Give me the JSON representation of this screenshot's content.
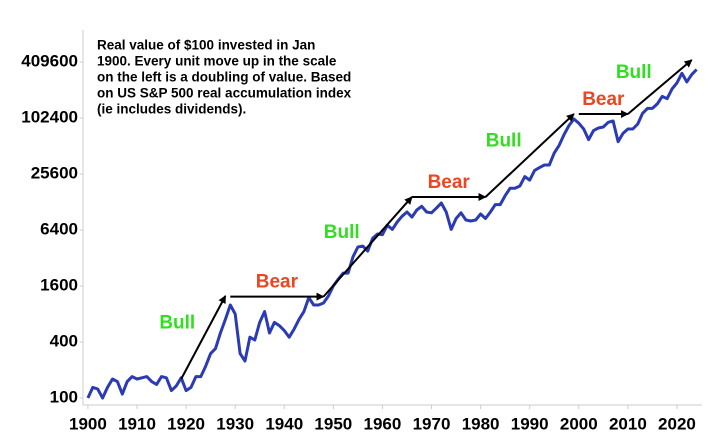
{
  "chart_data": {
    "type": "line",
    "log_scale": true,
    "note_lines": [
      "Real value of $100 invested in Jan",
      "1900. Every unit move up in the scale",
      "on the left is a doubling of value. Based",
      "on US S&P 500 real accumulation index",
      "(ie includes dividends)."
    ],
    "x": [
      1900,
      1901,
      1902,
      1903,
      1904,
      1905,
      1906,
      1907,
      1908,
      1909,
      1910,
      1911,
      1912,
      1913,
      1914,
      1915,
      1916,
      1917,
      1918,
      1919,
      1920,
      1921,
      1922,
      1923,
      1924,
      1925,
      1926,
      1927,
      1928,
      1929,
      1930,
      1931,
      1932,
      1933,
      1934,
      1935,
      1936,
      1937,
      1938,
      1939,
      1940,
      1941,
      1942,
      1943,
      1944,
      1945,
      1946,
      1947,
      1948,
      1949,
      1950,
      1951,
      1952,
      1953,
      1954,
      1955,
      1956,
      1957,
      1958,
      1959,
      1960,
      1961,
      1962,
      1963,
      1964,
      1965,
      1966,
      1967,
      1968,
      1969,
      1970,
      1971,
      1972,
      1973,
      1974,
      1975,
      1976,
      1977,
      1978,
      1979,
      1980,
      1981,
      1982,
      1983,
      1984,
      1985,
      1986,
      1987,
      1988,
      1989,
      1990,
      1991,
      1992,
      1993,
      1994,
      1995,
      1996,
      1997,
      1998,
      1999,
      2000,
      2001,
      2002,
      2003,
      2004,
      2005,
      2006,
      2007,
      2008,
      2009,
      2010,
      2011,
      2012,
      2013,
      2014,
      2015,
      2016,
      2017,
      2018,
      2019,
      2020,
      2021,
      2022,
      2023,
      2024
    ],
    "series": [
      {
        "color": "#2a3bb5",
        "values": [
          100,
          130,
          125,
          100,
          130,
          160,
          150,
          110,
          150,
          170,
          160,
          165,
          170,
          150,
          140,
          170,
          165,
          120,
          135,
          165,
          120,
          130,
          170,
          170,
          220,
          300,
          340,
          500,
          700,
          1000,
          800,
          300,
          250,
          450,
          420,
          650,
          850,
          500,
          650,
          600,
          530,
          450,
          550,
          700,
          850,
          1200,
          1000,
          1000,
          1050,
          1250,
          1600,
          1900,
          2200,
          2200,
          3300,
          4200,
          4300,
          3800,
          5200,
          5800,
          5700,
          7200,
          6500,
          7800,
          9000,
          10000,
          8800,
          10500,
          11500,
          10000,
          9800,
          11000,
          12500,
          10000,
          6500,
          8500,
          9800,
          8200,
          8000,
          8200,
          9500,
          8500,
          10000,
          12000,
          12000,
          15000,
          18000,
          18000,
          19000,
          24000,
          22000,
          28000,
          30000,
          32000,
          32000,
          43000,
          52000,
          68000,
          85000,
          100000,
          90000,
          78000,
          60000,
          75000,
          80000,
          82000,
          92000,
          95000,
          57000,
          70000,
          78000,
          78000,
          88000,
          115000,
          130000,
          130000,
          145000,
          175000,
          165000,
          210000,
          245000,
          310000,
          250000,
          300000,
          340000
        ]
      }
    ],
    "xlim": [
      1899,
      2025
    ],
    "xticks": [
      1900,
      1910,
      1920,
      1930,
      1940,
      1950,
      1960,
      1970,
      1980,
      1990,
      2000,
      2010,
      2020
    ],
    "ylim": [
      100,
      409600
    ],
    "yticks": [
      100,
      400,
      1600,
      6400,
      25600,
      102400,
      409600
    ],
    "arrows": [
      {
        "label": "Bull",
        "color": "#33dd22",
        "start": [
          1919,
          160
        ],
        "end": [
          1928,
          1250
        ]
      },
      {
        "label": "Bear",
        "color": "#ee4422",
        "start": [
          1929,
          1230
        ],
        "end": [
          1948,
          1230
        ]
      },
      {
        "label": "Bull",
        "color": "#33dd22",
        "start": [
          1948,
          1230
        ],
        "end": [
          1966,
          14500
        ]
      },
      {
        "label": "Bear",
        "color": "#ee4422",
        "start": [
          1966,
          14500
        ],
        "end": [
          1981,
          14500
        ]
      },
      {
        "label": "Bull",
        "color": "#33dd22",
        "start": [
          1981,
          14500
        ],
        "end": [
          1999,
          113000
        ]
      },
      {
        "label": "Bear",
        "color": "#ee4422",
        "start": [
          2000,
          113000
        ],
        "end": [
          2010,
          113000
        ]
      },
      {
        "label": "Bull",
        "color": "#33dd22",
        "start": [
          2010,
          113000
        ],
        "end": [
          2023,
          430000
        ]
      }
    ]
  }
}
